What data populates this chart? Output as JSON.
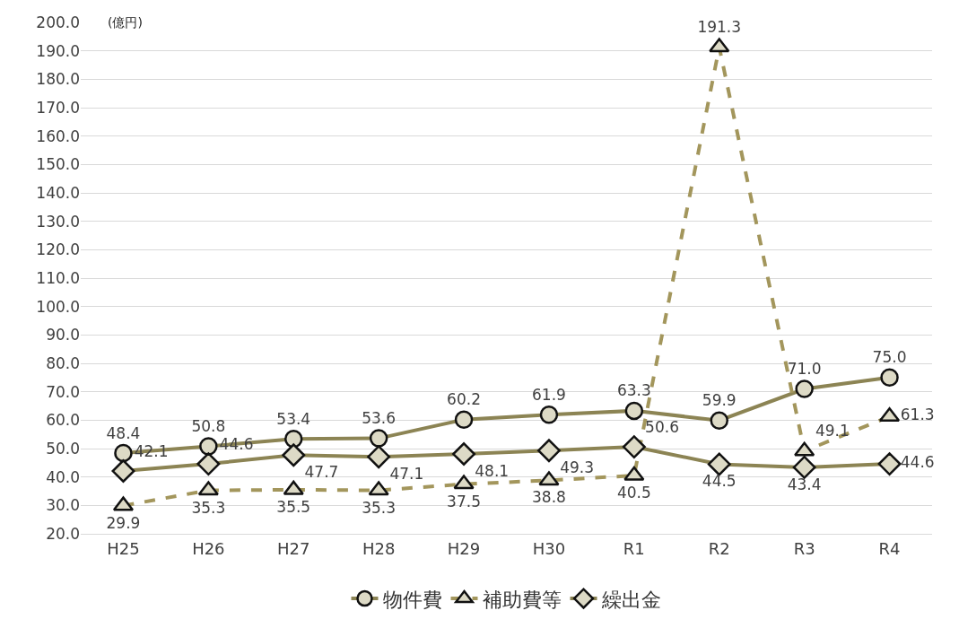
{
  "chart_data": {
    "type": "line",
    "ylabel": "(億円)",
    "categories": [
      "H25",
      "H26",
      "H27",
      "H28",
      "H29",
      "H30",
      "R1",
      "R2",
      "R3",
      "R4"
    ],
    "series": [
      {
        "name": "物件費",
        "color": "#8c8454",
        "marker": "circle",
        "line_style": "solid",
        "values": [
          48.4,
          50.8,
          53.4,
          53.6,
          60.2,
          61.9,
          63.3,
          59.9,
          71.0,
          75.0
        ],
        "value_labels": [
          "48.4",
          "50.8",
          "53.4",
          "53.6",
          "60.2",
          "61.9",
          "63.3",
          "59.9",
          "71.0",
          "75.0"
        ]
      },
      {
        "name": "補助費等",
        "color": "#a3965c",
        "marker": "triangle",
        "line_style": "dashed",
        "values": [
          29.9,
          35.3,
          35.5,
          35.3,
          37.5,
          38.8,
          40.5,
          191.3,
          49.1,
          61.3
        ],
        "value_labels": [
          "29.9",
          "35.3",
          "35.5",
          "35.3",
          "37.5",
          "38.8",
          "40.5",
          "191.3",
          "49.1",
          "61.3"
        ]
      },
      {
        "name": "繰出金",
        "color": "#8c8454",
        "marker": "diamond",
        "line_style": "solid",
        "values": [
          42.1,
          44.6,
          47.7,
          47.1,
          48.1,
          49.3,
          50.6,
          44.5,
          43.4,
          44.6
        ],
        "value_labels": [
          "42.1",
          "44.6",
          "47.7",
          "47.1",
          "48.1",
          "49.3",
          "50.6",
          "44.5",
          "43.4",
          "44.6"
        ]
      }
    ],
    "ylim": [
      20,
      200
    ],
    "yticks": [
      {
        "value": 20,
        "label": "20.0"
      },
      {
        "value": 30,
        "label": "30.0"
      },
      {
        "value": 40,
        "label": "40.0"
      },
      {
        "value": 50,
        "label": "50.0"
      },
      {
        "value": 60,
        "label": "60.0"
      },
      {
        "value": 70,
        "label": "70.0"
      },
      {
        "value": 80,
        "label": "80.0"
      },
      {
        "value": 90,
        "label": "90.0"
      },
      {
        "value": 100,
        "label": "100.0"
      },
      {
        "value": 110,
        "label": "110.0"
      },
      {
        "value": 120,
        "label": "120.0"
      },
      {
        "value": 130,
        "label": "130.0"
      },
      {
        "value": 140,
        "label": "140.0"
      },
      {
        "value": 150,
        "label": "150.0"
      },
      {
        "value": 160,
        "label": "160.0"
      },
      {
        "value": 170,
        "label": "170.0"
      },
      {
        "value": 180,
        "label": "180.0"
      },
      {
        "value": 190,
        "label": "190.0"
      },
      {
        "value": 200,
        "label": "200.0"
      }
    ],
    "grid": "y",
    "legend": "bottom"
  }
}
